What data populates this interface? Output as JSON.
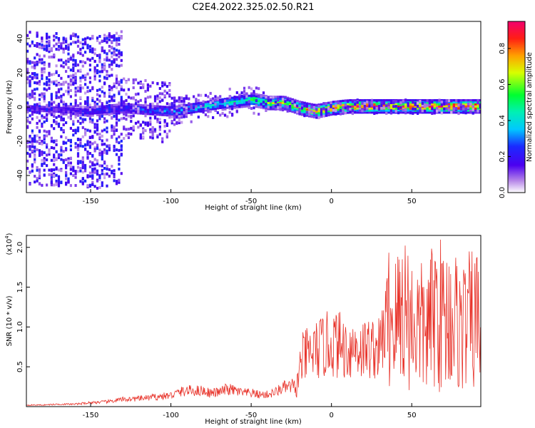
{
  "title": "C2E4.2022.325.02.50.R21",
  "colors": {
    "snr_line": "#e8332a",
    "axis": "#000000"
  },
  "chart_data": [
    {
      "type": "heatmap",
      "xlabel": "Height of straight line (km)",
      "ylabel": "Frequency (Hz)",
      "xlim": [
        -190,
        93
      ],
      "ylim": [
        -50,
        50
      ],
      "x_ticks": [
        -150,
        -100,
        -50,
        0,
        50
      ],
      "y_ticks": [
        -40,
        -20,
        0,
        20,
        40
      ],
      "colorbar": {
        "label": "Normalized spectral amplitude",
        "range": [
          0.0,
          0.95
        ],
        "ticks": [
          "0.0",
          "0.2",
          "0.4",
          "0.6",
          "0.8"
        ],
        "tick_values": [
          0.0,
          0.2,
          0.4,
          0.6,
          0.8
        ]
      },
      "ridge_frequency": {
        "x": [
          -190,
          -150,
          -130,
          -100,
          -80,
          -60,
          -50,
          -40,
          -30,
          -20,
          -10,
          0,
          10,
          20,
          30,
          40,
          50,
          60,
          70,
          80,
          93
        ],
        "y": [
          0,
          -2,
          0,
          -2,
          1,
          4,
          5,
          3,
          3,
          0,
          -2,
          0,
          1,
          1,
          1,
          1,
          1,
          1,
          1,
          1,
          1
        ]
      },
      "ridge_amplitude": {
        "x": [
          -190,
          -150,
          -130,
          -100,
          -80,
          -60,
          -50,
          -40,
          -30,
          -20,
          -10,
          0,
          10,
          20,
          30,
          40,
          50,
          60,
          70,
          80,
          93
        ],
        "y": [
          0.15,
          0.2,
          0.25,
          0.35,
          0.4,
          0.45,
          0.55,
          0.65,
          0.7,
          0.7,
          0.75,
          0.8,
          0.85,
          0.9,
          0.9,
          0.9,
          0.9,
          0.9,
          0.9,
          0.9,
          0.9
        ]
      }
    },
    {
      "type": "line",
      "xlabel": "Height of straight line (km)",
      "ylabel": "SNR (10 * v/v)",
      "y_multiplier": "(x10",
      "y_multiplier_exp": "4",
      "y_multiplier_close": ")",
      "xlim": [
        -190,
        93
      ],
      "ylim": [
        0.0,
        2.15
      ],
      "x_ticks": [
        -150,
        -100,
        -50,
        0,
        50
      ],
      "y_ticks": [
        0.5,
        1.0,
        1.5,
        2.0
      ],
      "y_tick_labels": [
        "0.5",
        "1.0",
        "1.5",
        "2.0"
      ],
      "series": [
        {
          "x": [
            -190,
            -180,
            -170,
            -160,
            -150,
            -140,
            -130,
            -120,
            -110,
            -100,
            -95,
            -90,
            -85,
            -80,
            -75,
            -70,
            -65,
            -60,
            -55,
            -50,
            -45,
            -40,
            -35,
            -30,
            -25,
            -22,
            -20,
            -18,
            -15,
            -10,
            -5,
            0,
            5,
            10,
            15,
            20,
            25,
            30,
            35,
            40,
            45,
            50,
            55,
            60,
            65,
            70,
            75,
            80,
            85,
            90,
            93
          ],
          "y": [
            0.02,
            0.02,
            0.03,
            0.03,
            0.05,
            0.06,
            0.09,
            0.1,
            0.12,
            0.14,
            0.18,
            0.2,
            0.2,
            0.2,
            0.17,
            0.18,
            0.22,
            0.2,
            0.17,
            0.17,
            0.15,
            0.15,
            0.18,
            0.24,
            0.25,
            0.2,
            0.45,
            0.6,
            0.65,
            0.7,
            0.75,
            0.8,
            0.78,
            0.72,
            0.75,
            0.72,
            0.74,
            0.72,
            1.15,
            1.05,
            1.3,
            1.05,
            1.0,
            0.95,
            1.25,
            1.1,
            1.15,
            1.0,
            1.05,
            1.1,
            1.05
          ]
        }
      ]
    }
  ]
}
